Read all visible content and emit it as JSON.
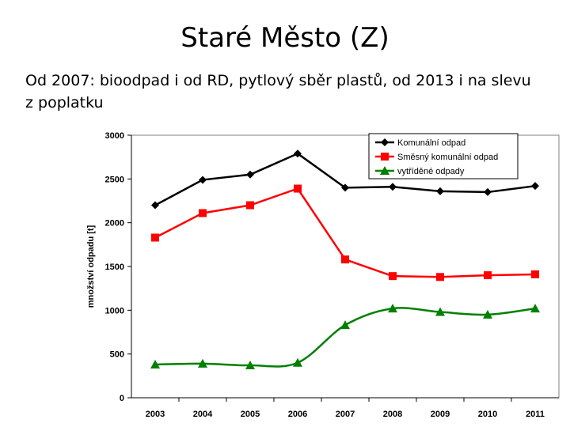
{
  "slide": {
    "title": "Staré Město (Z)",
    "body": "Od 2007: bioodpad i od RD, pytlový sběr plastů, od 2013 i na slevu z poplatku"
  },
  "chart_data": {
    "type": "line",
    "title": "",
    "xlabel": "",
    "ylabel": "množství odpadu [t]",
    "ylim": [
      0,
      3000
    ],
    "yticks": [
      "0",
      "500",
      "1000",
      "1500",
      "2000",
      "2500",
      "3000"
    ],
    "categories": [
      "2003",
      "2004",
      "2005",
      "2006",
      "2007",
      "2008",
      "2009",
      "2010",
      "2011"
    ],
    "legend_position": "top-right",
    "series": [
      {
        "name": "Komunální odpad",
        "color": "#000000",
        "marker": "diamond",
        "values": [
          2200,
          2490,
          2550,
          2790,
          2400,
          2410,
          2360,
          2350,
          2420
        ]
      },
      {
        "name": "Směsný komunální odpad",
        "color": "#ff0000",
        "marker": "square",
        "values": [
          1830,
          2110,
          2200,
          2390,
          1580,
          1390,
          1380,
          1400,
          1410
        ]
      },
      {
        "name": "vytříděné odpady",
        "color": "#008000",
        "marker": "triangle",
        "values": [
          380,
          390,
          370,
          400,
          830,
          1020,
          980,
          950,
          1020
        ]
      }
    ]
  }
}
